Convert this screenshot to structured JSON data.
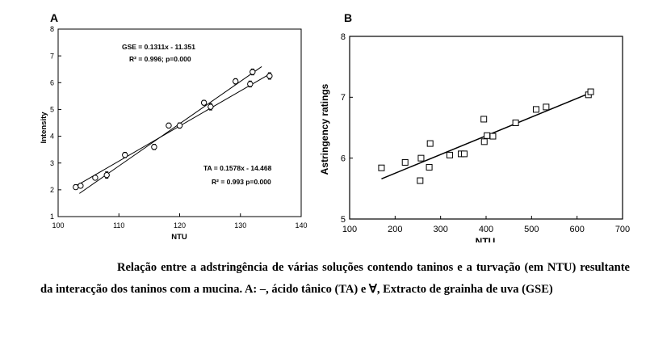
{
  "chart_data": [
    {
      "type": "scatter",
      "panel_label": "A",
      "xlabel": "NTU",
      "ylabel": "Intensity",
      "xlim": [
        100,
        140
      ],
      "ylim": [
        1,
        8
      ],
      "xticks": [
        100,
        110,
        120,
        130,
        140
      ],
      "yticks": [
        1,
        2,
        3,
        4,
        5,
        6,
        7,
        8
      ],
      "grid": false,
      "series": [
        {
          "label": "GSE",
          "x": [
            102.9,
            106.1,
            108.0,
            111.0,
            118.2,
            120.0,
            124.0,
            125.1,
            129.2,
            132.0
          ],
          "y": [
            2.1,
            2.45,
            2.55,
            3.3,
            4.4,
            4.4,
            5.25,
            5.1,
            6.05,
            6.4
          ],
          "err": [
            0.09,
            0.08,
            0.12,
            0.1,
            0.09,
            0.1,
            0.09,
            0.12,
            0.1,
            0.11
          ],
          "fit": {
            "slope": 0.1311,
            "intercept": -11.351,
            "x_range": [
              103,
              135
            ]
          }
        },
        {
          "label": "TA",
          "x": [
            103.7,
            115.8,
            131.6,
            134.8
          ],
          "y": [
            2.15,
            3.6,
            5.95,
            6.25
          ],
          "err": [
            0.08,
            0.1,
            0.11,
            0.12
          ],
          "fit": {
            "slope": 0.1578,
            "intercept": -14.468,
            "x_range": [
              103.5,
              133.5
            ]
          }
        }
      ],
      "annotations": [
        {
          "id": "gse_eq",
          "text": "GSE = 0.1311x - 11.351"
        },
        {
          "id": "gse_r2",
          "text": "R² = 0.996; p=0.000"
        },
        {
          "id": "ta_eq",
          "text": "TA = 0.1578x - 14.468"
        },
        {
          "id": "ta_r2",
          "text": "R² = 0.993 p=0.000"
        }
      ]
    },
    {
      "type": "scatter",
      "panel_label": "B",
      "xlabel": "NTU",
      "ylabel": "Astringency ratings",
      "xlim": [
        100,
        700
      ],
      "ylim": [
        5,
        8
      ],
      "xticks": [
        100,
        200,
        300,
        400,
        500,
        600,
        700
      ],
      "yticks": [
        5,
        6,
        7,
        8
      ],
      "grid": false,
      "series": [
        {
          "label": "",
          "x": [
            170,
            222,
            255,
            257,
            275,
            277,
            320,
            345,
            352,
            395,
            396,
            402,
            415,
            465,
            510,
            532,
            625,
            630
          ],
          "y": [
            5.84,
            5.93,
            5.63,
            6.0,
            5.85,
            6.24,
            6.05,
            6.07,
            6.07,
            6.64,
            6.27,
            6.37,
            6.36,
            6.58,
            6.8,
            6.84,
            7.04,
            7.09
          ],
          "fit": {
            "x1": 170,
            "y1": 5.66,
            "x2": 632,
            "y2": 7.08
          }
        }
      ]
    }
  ],
  "caption": {
    "text": "Relação entre a adstringência de várias soluções contendo taninos e a turvação (em NTU) resultante da interacção dos taninos com a mucina. A: –, ácido tânico (TA) e ∀, Extracto de grainha de uva (GSE)"
  }
}
